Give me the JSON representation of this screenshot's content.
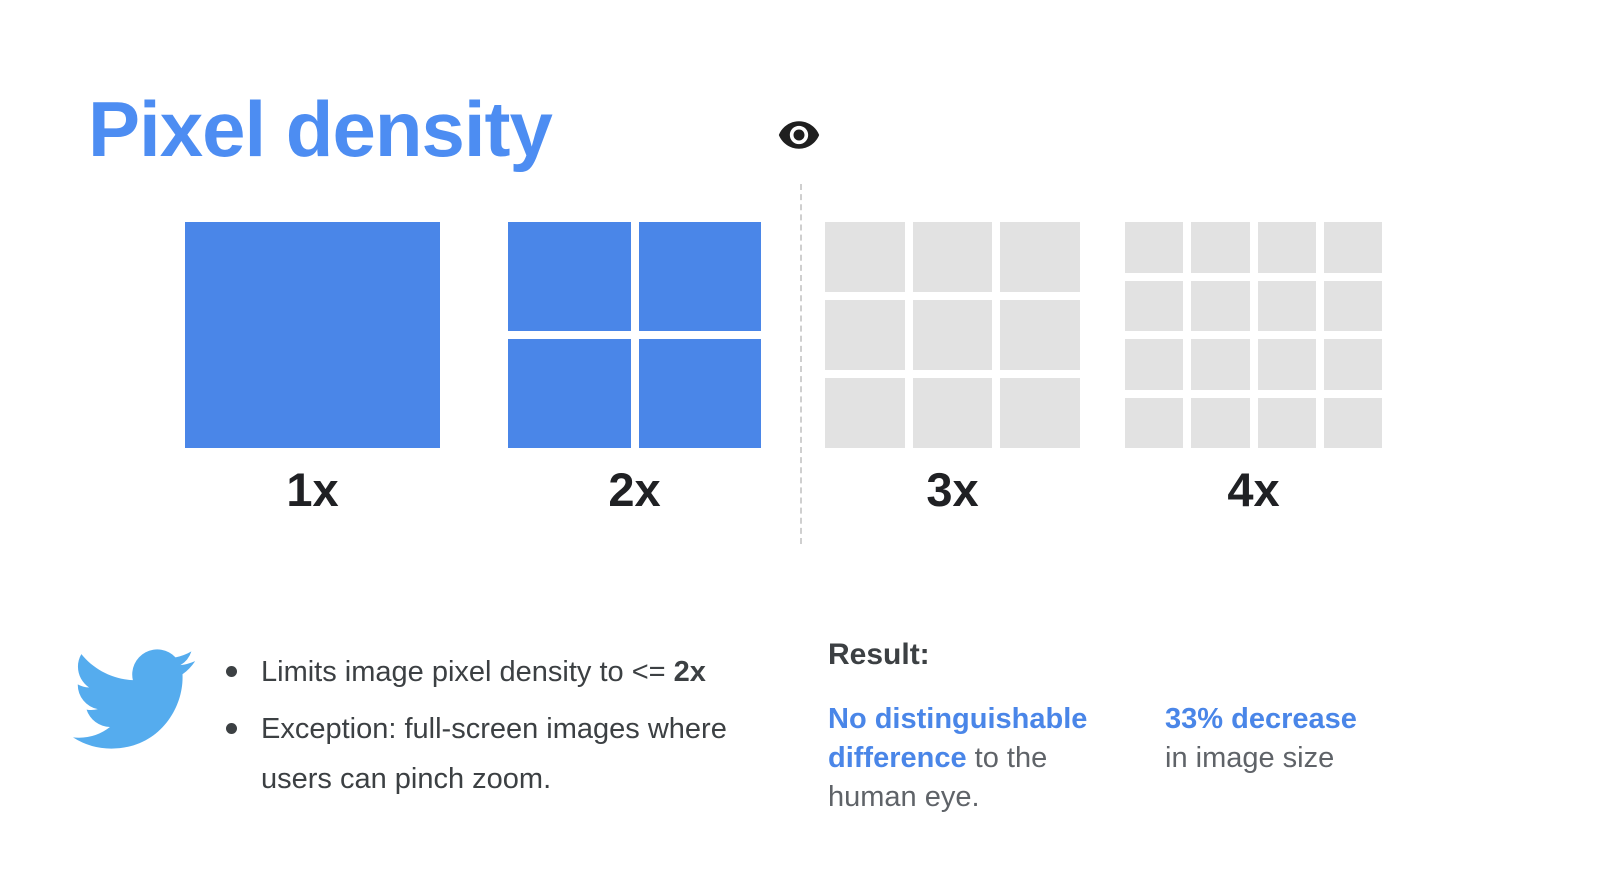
{
  "slide": {
    "title": "Pixel density"
  },
  "pixel_grids": [
    {
      "label": "1x",
      "divisions": 1,
      "color": "#4a86e8"
    },
    {
      "label": "2x",
      "divisions": 2,
      "color": "#4a86e8"
    },
    {
      "label": "3x",
      "divisions": 3,
      "color": "#e2e2e2"
    },
    {
      "label": "4x",
      "divisions": 4,
      "color": "#e2e2e2"
    }
  ],
  "notes": {
    "bullet1_prefix": "Limits image pixel density to <= ",
    "bullet1_bold": "2x",
    "bullet2": "Exception: full-screen images where users can pinch zoom."
  },
  "result": {
    "heading": "Result:",
    "difference_highlight": "No distinguishable difference",
    "difference_rest": " to the human eye.",
    "size_highlight": "33% decrease",
    "size_rest": "in image size"
  },
  "colors": {
    "title_blue": "#4d8df2",
    "pixel_blue": "#4a86e8",
    "pixel_gray": "#e2e2e2",
    "highlight_blue": "#4a86e8",
    "text_dark": "#3c4043",
    "text_gray": "#5f6368",
    "twitter_blue": "#55acee"
  }
}
